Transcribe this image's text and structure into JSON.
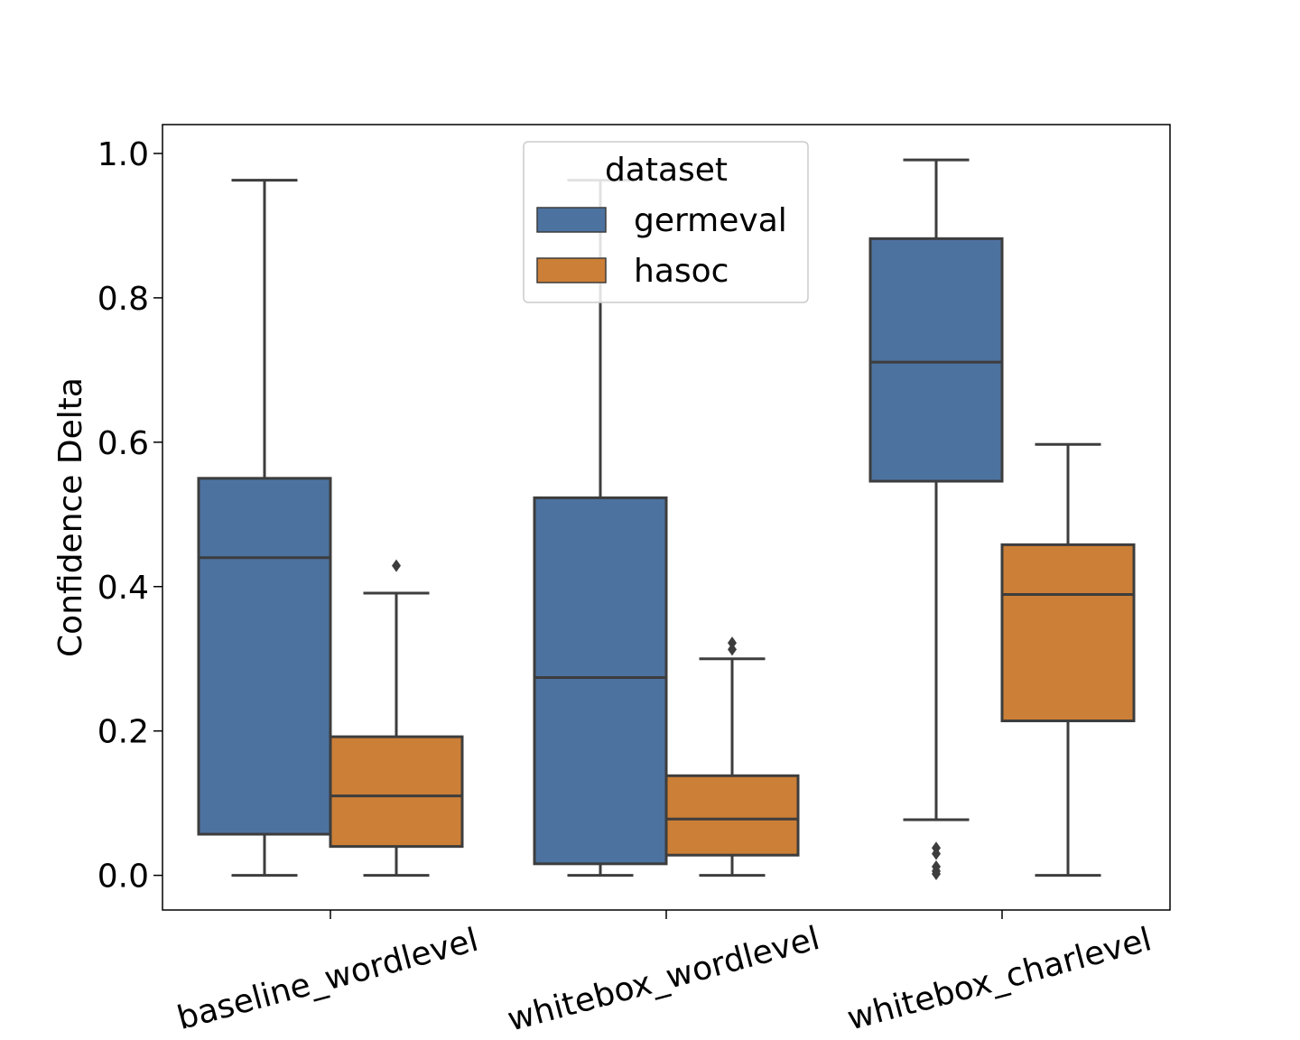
{
  "chart_data": {
    "type": "box",
    "ylabel": "Confidence Delta",
    "xlabel": "",
    "ylim": [
      -0.048,
      1.04
    ],
    "yticks": [
      0.0,
      0.2,
      0.4,
      0.6,
      0.8,
      1.0
    ],
    "ytick_labels": [
      "0.0",
      "0.2",
      "0.4",
      "0.6",
      "0.8",
      "1.0"
    ],
    "categories": [
      "baseline_wordlevel",
      "whitebox_wordlevel",
      "whitebox_charlevel"
    ],
    "grid": false,
    "legend": {
      "title": "dataset",
      "placement": "upper center"
    },
    "series": [
      {
        "name": "germeval",
        "color": "#4c72a0",
        "boxes": [
          {
            "whisker_low": 0.0,
            "q1": 0.057,
            "median": 0.44,
            "q3": 0.55,
            "whisker_high": 0.963,
            "outliers": []
          },
          {
            "whisker_low": 0.0,
            "q1": 0.016,
            "median": 0.274,
            "q3": 0.523,
            "whisker_high": 0.963,
            "outliers": []
          },
          {
            "whisker_low": 0.077,
            "q1": 0.546,
            "median": 0.711,
            "q3": 0.882,
            "whisker_high": 0.991,
            "outliers": [
              0.038,
              0.03,
              0.012,
              0.006,
              0.002
            ]
          }
        ]
      },
      {
        "name": "hasoc",
        "color": "#cc7f36",
        "boxes": [
          {
            "whisker_low": 0.0,
            "q1": 0.04,
            "median": 0.11,
            "q3": 0.192,
            "whisker_high": 0.391,
            "outliers": [
              0.429
            ]
          },
          {
            "whisker_low": 0.0,
            "q1": 0.028,
            "median": 0.078,
            "q3": 0.138,
            "whisker_high": 0.3,
            "outliers": [
              0.322,
              0.313
            ]
          },
          {
            "whisker_low": 0.0,
            "q1": 0.214,
            "median": 0.389,
            "q3": 0.458,
            "whisker_high": 0.597,
            "outliers": []
          }
        ]
      }
    ]
  }
}
